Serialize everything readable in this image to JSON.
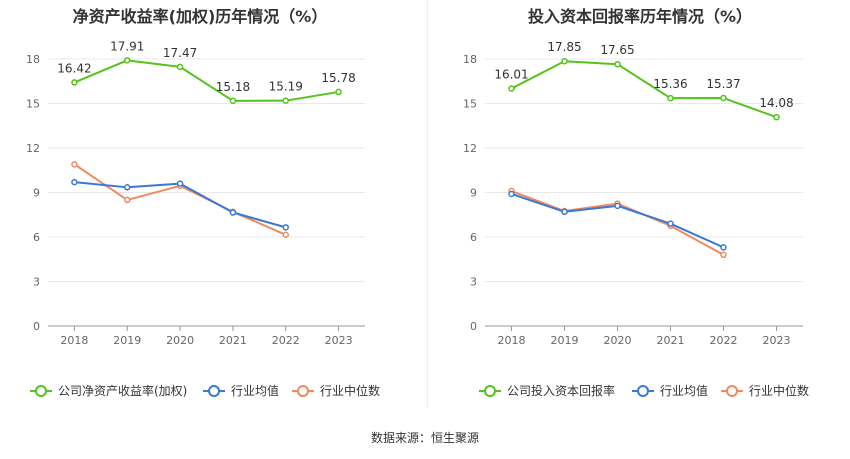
{
  "source_text": "数据来源：恒生聚源",
  "chart_data": [
    {
      "type": "line",
      "title": "净资产收益率(加权)历年情况（%）",
      "categories": [
        "2018",
        "2019",
        "2020",
        "2021",
        "2022",
        "2023"
      ],
      "ylim": [
        0,
        18
      ],
      "yticks": [
        0,
        3,
        6,
        9,
        12,
        15,
        18
      ],
      "grid": true,
      "legend_placement": "bottom-left",
      "series": [
        {
          "name": "公司净资产收益率(加权)",
          "color": "#52c41a",
          "values": [
            16.42,
            17.91,
            17.47,
            15.18,
            15.19,
            15.78
          ],
          "labels": [
            "16.42",
            "17.91",
            "17.47",
            "15.18",
            "15.19",
            "15.78"
          ]
        },
        {
          "name": "行业均值",
          "color": "#3a78d8",
          "values": [
            9.7,
            9.35,
            9.6,
            7.65,
            6.65,
            null
          ]
        },
        {
          "name": "行业中位数",
          "color": "#f08a5d",
          "values": [
            10.9,
            8.5,
            9.45,
            7.7,
            6.15,
            null
          ]
        }
      ]
    },
    {
      "type": "line",
      "title": "投入资本回报率历年情况（%）",
      "categories": [
        "2018",
        "2019",
        "2020",
        "2021",
        "2022",
        "2023"
      ],
      "ylim": [
        0,
        18
      ],
      "yticks": [
        0,
        3,
        6,
        9,
        12,
        15,
        18
      ],
      "grid": true,
      "legend_placement": "bottom-left",
      "series": [
        {
          "name": "公司投入资本回报率",
          "color": "#52c41a",
          "values": [
            16.01,
            17.85,
            17.65,
            15.36,
            15.37,
            14.08
          ],
          "labels": [
            "16.01",
            "17.85",
            "17.65",
            "15.36",
            "15.37",
            "14.08"
          ]
        },
        {
          "name": "行业均值",
          "color": "#3a78d8",
          "values": [
            8.9,
            7.7,
            8.1,
            6.9,
            5.3,
            null
          ]
        },
        {
          "name": "行业中位数",
          "color": "#f08a5d",
          "values": [
            9.1,
            7.75,
            8.25,
            6.75,
            4.8,
            null
          ]
        }
      ]
    }
  ]
}
